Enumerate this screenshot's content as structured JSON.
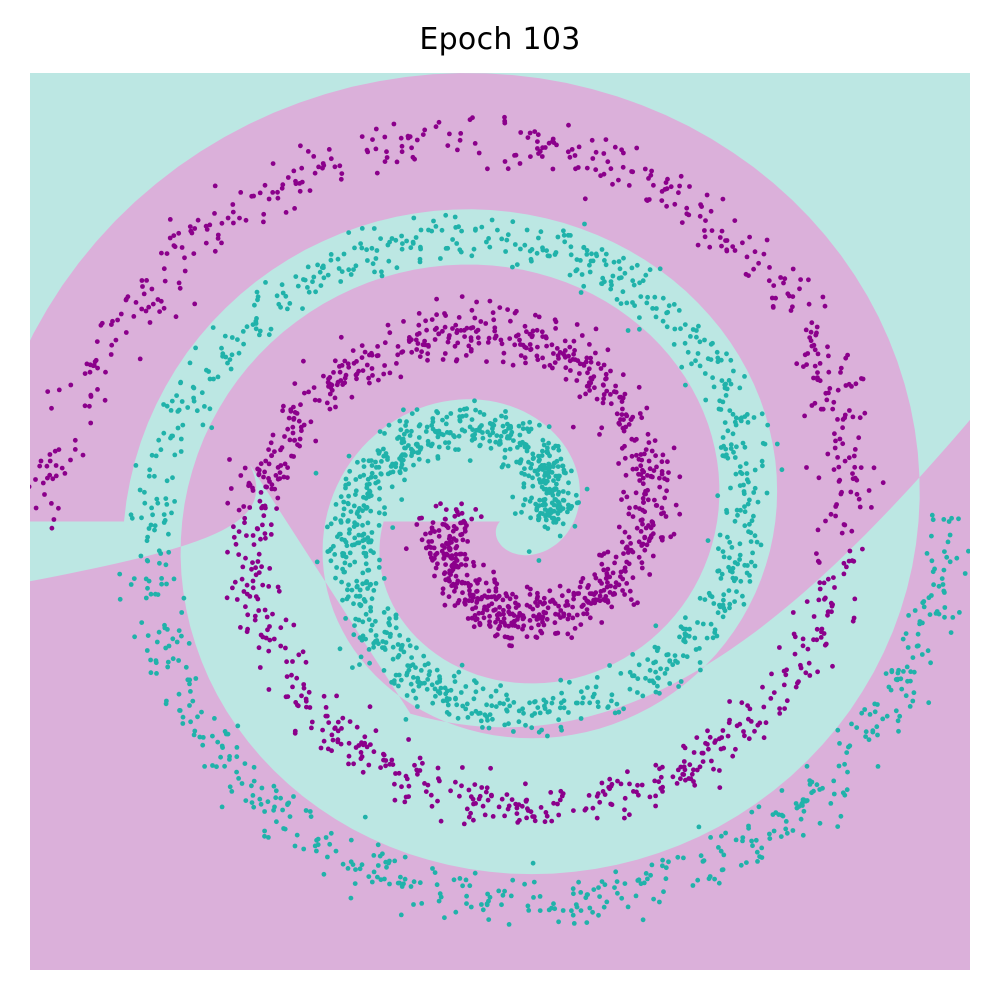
{
  "chart_data": {
    "type": "scatter",
    "title": "Epoch 103",
    "xlabel": "",
    "ylabel": "",
    "axes_visible": false,
    "grid": false,
    "xlim": [
      -1.05,
      1.05
    ],
    "ylim": [
      -1.05,
      1.05
    ],
    "background_regions": {
      "class_a_color": "#BCE7E3",
      "class_b_color": "#DBB0DA"
    },
    "series": [
      {
        "color": "#20B2AA",
        "spiral": {
          "phase": 0,
          "turns": 2,
          "r_min": 0.1,
          "r_max": 1.0,
          "noise": 0.03
        },
        "n_points": 1800
      },
      {
        "color": "#8B008B",
        "spiral": {
          "phase": 3.1416,
          "turns": 2,
          "r_min": 0.1,
          "r_max": 1.0,
          "noise": 0.03
        },
        "n_points": 1800
      }
    ]
  }
}
